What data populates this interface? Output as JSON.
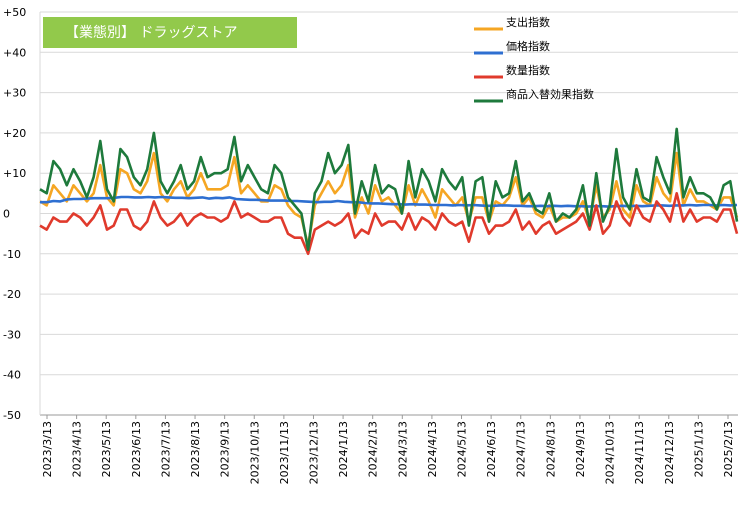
{
  "chart_data": {
    "type": "line",
    "title": "【業態別】 ドラッグストア",
    "title_bg": "#92C94B",
    "xlabel": "",
    "ylabel": "",
    "ylim": [
      -50,
      50
    ],
    "ytick_labels": [
      "+50",
      "+40",
      "+30",
      "+20",
      "+10",
      "0",
      "-10",
      "-20",
      "-30",
      "-40",
      "-50"
    ],
    "grid": "horizontal",
    "legend_position": "top-right",
    "xtick_labels": [
      "2023/3/13",
      "2023/4/13",
      "2023/5/13",
      "2023/6/13",
      "2023/7/13",
      "2023/8/13",
      "2023/9/13",
      "2023/10/13",
      "2023/11/13",
      "2023/12/13",
      "2024/1/13",
      "2024/2/13",
      "2024/3/13",
      "2024/4/13",
      "2024/5/13",
      "2024/6/13",
      "2024/7/13",
      "2024/8/13",
      "2024/9/13",
      "2024/10/13",
      "2024/11/13",
      "2024/12/13",
      "2025/1/13",
      "2025/2/13"
    ],
    "series": [
      {
        "name": "支出指数",
        "color": "#F5A623",
        "values": [
          3,
          2,
          7,
          5,
          3,
          7,
          5,
          3,
          5,
          12,
          4,
          2,
          11,
          10,
          6,
          5,
          8,
          15,
          5,
          3,
          6,
          8,
          4,
          6,
          10,
          6,
          6,
          6,
          7,
          14,
          5,
          7,
          5,
          3,
          3,
          7,
          6,
          2,
          0,
          -1,
          -8,
          2,
          5,
          8,
          5,
          7,
          12,
          -1,
          4,
          0,
          7,
          3,
          4,
          2,
          0,
          7,
          2,
          6,
          3,
          -1,
          6,
          4,
          2,
          4,
          -2,
          4,
          4,
          -2,
          3,
          2,
          4,
          9,
          2,
          4,
          0,
          -1,
          2,
          -2,
          -1,
          -1,
          0,
          3,
          -2,
          7,
          -1,
          1,
          8,
          1,
          -1,
          7,
          3,
          2,
          9,
          5,
          3,
          15,
          2,
          6,
          3,
          3,
          2,
          1,
          4,
          4,
          -1
        ]
      },
      {
        "name": "価格指数",
        "color": "#2E6FD1",
        "values": [
          2.8,
          2.8,
          3.1,
          3.0,
          3.5,
          3.6,
          3.6,
          3.7,
          3.8,
          3.8,
          3.8,
          3.9,
          4.1,
          4.1,
          4.0,
          4.0,
          4.1,
          4.0,
          4.1,
          4.0,
          3.9,
          3.9,
          3.8,
          3.9,
          4.0,
          3.7,
          3.9,
          3.8,
          4.0,
          3.6,
          3.5,
          3.4,
          3.4,
          3.3,
          3.2,
          3.2,
          3.2,
          3.1,
          3.1,
          3.0,
          2.9,
          2.8,
          2.9,
          2.9,
          3.1,
          2.9,
          2.8,
          2.8,
          2.6,
          2.5,
          2.5,
          2.4,
          2.3,
          2.3,
          2.2,
          2.3,
          2.2,
          2.2,
          2.1,
          2.1,
          2.1,
          2.0,
          2.1,
          2.0,
          2.1,
          2.0,
          1.9,
          1.9,
          2.0,
          2.0,
          1.9,
          1.9,
          1.8,
          1.8,
          1.9,
          1.8,
          1.9,
          1.8,
          1.9,
          1.8,
          1.8,
          1.7,
          1.8,
          1.8,
          1.7,
          1.8,
          1.9,
          1.8,
          1.9,
          1.8,
          1.9,
          2.0,
          2.0,
          1.9,
          2.0,
          2.0,
          2.1,
          2.0,
          2.1,
          2.1,
          2.0,
          2.1,
          2.0,
          2.1
        ]
      },
      {
        "name": "数量指数",
        "color": "#E03A2C",
        "values": [
          -3,
          -4,
          -1,
          -2,
          -2,
          0,
          -1,
          -3,
          -1,
          2,
          -4,
          -3,
          1,
          1,
          -3,
          -4,
          -2,
          3,
          -1,
          -3,
          -2,
          0,
          -3,
          -1,
          0,
          -1,
          -1,
          -2,
          -1,
          3,
          -1,
          0,
          -1,
          -2,
          -2,
          -1,
          -1,
          -5,
          -6,
          -6,
          -10,
          -4,
          -3,
          -2,
          -3,
          -2,
          0,
          -6,
          -4,
          -5,
          0,
          -3,
          -2,
          -2,
          -4,
          0,
          -4,
          -1,
          -2,
          -4,
          0,
          -2,
          -3,
          -2,
          -7,
          -1,
          -1,
          -5,
          -3,
          -3,
          -2,
          1,
          -4,
          -2,
          -5,
          -3,
          -2,
          -5,
          -4,
          -3,
          -2,
          0,
          -4,
          2,
          -5,
          -3,
          3,
          -1,
          -3,
          2,
          -1,
          -2,
          3,
          1,
          -2,
          5,
          -2,
          1,
          -2,
          -1,
          -1,
          -2,
          1,
          1,
          -5
        ]
      },
      {
        "name": "商品入替効果指数",
        "color": "#1E7A3C",
        "values": [
          6,
          5,
          13,
          11,
          7,
          11,
          8,
          4,
          9,
          18,
          6,
          3,
          16,
          14,
          9,
          7,
          11,
          20,
          8,
          5,
          8,
          12,
          6,
          8,
          14,
          9,
          10,
          10,
          11,
          19,
          8,
          12,
          9,
          6,
          5,
          12,
          10,
          4,
          2,
          0,
          -9,
          5,
          8,
          15,
          10,
          12,
          17,
          0,
          8,
          3,
          12,
          5,
          7,
          6,
          0,
          13,
          4,
          11,
          8,
          3,
          11,
          8,
          6,
          9,
          -3,
          8,
          9,
          -2,
          8,
          4,
          5,
          13,
          3,
          5,
          1,
          0,
          5,
          -2,
          0,
          -1,
          1,
          7,
          -3,
          10,
          -2,
          2,
          16,
          4,
          1,
          11,
          4,
          3,
          14,
          9,
          5,
          21,
          4,
          9,
          5,
          5,
          4,
          1,
          7,
          8,
          -2
        ]
      }
    ]
  }
}
